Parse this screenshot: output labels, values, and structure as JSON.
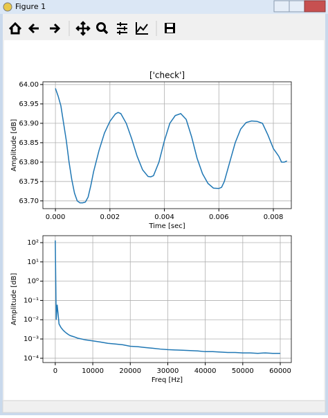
{
  "window": {
    "title": "Figure 1"
  },
  "chart_data": [
    {
      "type": "line",
      "title": "['check']",
      "x_label": "Time [sec]",
      "y_label": "Amplitude [dB]",
      "x": [
        0,
        0.0001,
        0.0002,
        0.0003,
        0.0004,
        0.0005,
        0.0006,
        0.0007,
        0.0008,
        0.0009,
        0.001,
        0.0011,
        0.0012,
        0.0013,
        0.0014,
        0.0016,
        0.0018,
        0.002,
        0.0022,
        0.0023,
        0.0024,
        0.0026,
        0.0028,
        0.003,
        0.0032,
        0.0034,
        0.0035,
        0.0036,
        0.0038,
        0.004,
        0.0042,
        0.0044,
        0.0046,
        0.0048,
        0.005,
        0.0052,
        0.0054,
        0.0056,
        0.0058,
        0.006,
        0.0061,
        0.0062,
        0.0064,
        0.0066,
        0.0068,
        0.007,
        0.0072,
        0.0074,
        0.0076,
        0.0078,
        0.008,
        0.0081,
        0.0082,
        0.0083,
        0.0084,
        0.0085
      ],
      "values": [
        63.99,
        63.97,
        63.945,
        63.9,
        63.855,
        63.8,
        63.755,
        63.72,
        63.7,
        63.695,
        63.695,
        63.697,
        63.71,
        63.74,
        63.775,
        63.83,
        63.875,
        63.905,
        63.924,
        63.928,
        63.925,
        63.9,
        63.86,
        63.815,
        63.78,
        63.763,
        63.762,
        63.765,
        63.8,
        63.855,
        63.9,
        63.92,
        63.925,
        63.91,
        63.865,
        63.81,
        63.77,
        63.745,
        63.733,
        63.732,
        63.735,
        63.75,
        63.8,
        63.85,
        63.885,
        63.902,
        63.906,
        63.905,
        63.9,
        63.87,
        63.835,
        63.825,
        63.815,
        63.8,
        63.8,
        63.803
      ],
      "color": "#1f77b4",
      "grid": true,
      "xlim": [
        -0.00046,
        0.00866
      ],
      "ylim": [
        63.68,
        64.007
      ],
      "xticks": [
        {
          "value": 0,
          "label": "0.000"
        },
        {
          "value": 0.002,
          "label": "0.002"
        },
        {
          "value": 0.004,
          "label": "0.004"
        },
        {
          "value": 0.006,
          "label": "0.006"
        },
        {
          "value": 0.008,
          "label": "0.008"
        }
      ],
      "yticks": [
        {
          "value": 63.7,
          "label": "63.70"
        },
        63.75,
        {
          "value": 63.8,
          "label": "63.80"
        },
        63.85,
        {
          "value": 63.9,
          "label": "63.90"
        },
        63.95,
        {
          "value": 64,
          "label": "64.00"
        }
      ]
    },
    {
      "type": "line",
      "x_label": "Freq [Hz]",
      "y_label": "Amplitude [dB]",
      "yscale": "log",
      "x": [
        0,
        250,
        500,
        750,
        1000,
        1500,
        2000,
        2500,
        3000,
        3500,
        4000,
        5000,
        6000,
        7000,
        8000,
        9000,
        10000,
        12000,
        14000,
        16000,
        18000,
        20000,
        22000,
        24000,
        26000,
        28000,
        30000,
        32000,
        34000,
        36000,
        38000,
        40000,
        42000,
        44000,
        46000,
        48000,
        50000,
        52000,
        54000,
        56000,
        58000,
        60000
      ],
      "values": [
        130,
        0.01,
        0.06,
        0.02,
        0.006,
        0.004,
        0.003,
        0.0024,
        0.002,
        0.0017,
        0.0015,
        0.0013,
        0.0011,
        0.001,
        0.0009,
        0.00085,
        0.0008,
        0.0007,
        0.0006,
        0.00055,
        0.0005,
        0.00042,
        0.0004,
        0.00036,
        0.00033,
        0.0003,
        0.00028,
        0.00027,
        0.00026,
        0.00025,
        0.00024,
        0.00022,
        0.00022,
        0.00021,
        0.0002,
        0.0002,
        0.00019,
        0.00019,
        0.00018,
        0.00019,
        0.00018,
        0.00018
      ],
      "color": "#1f77b4",
      "grid": true,
      "xlim": [
        -3300,
        62950
      ],
      "ylim": [
        6e-05,
        229
      ],
      "xticks": [
        0,
        10000,
        20000,
        30000,
        40000,
        50000,
        60000
      ],
      "yticks": [
        {
          "value": 0.0001,
          "label": "10⁻⁴"
        },
        {
          "value": 0.001,
          "label": "10⁻³"
        },
        {
          "value": 0.01,
          "label": "10⁻²"
        },
        {
          "value": 0.1,
          "label": "10⁻¹"
        },
        {
          "value": 1,
          "label": "10⁰"
        },
        {
          "value": 10,
          "label": "10¹"
        },
        {
          "value": 100,
          "label": "10²"
        }
      ]
    }
  ]
}
